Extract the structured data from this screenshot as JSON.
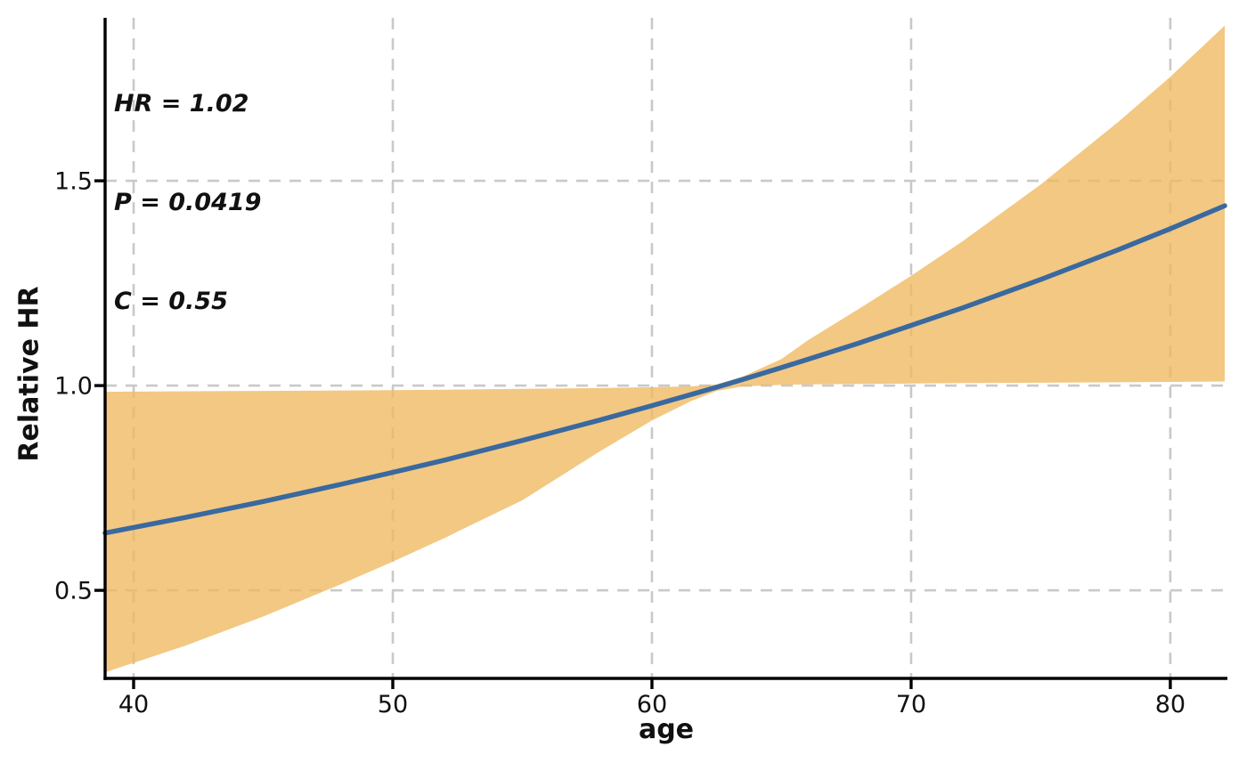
{
  "chart_data": {
    "type": "line",
    "title": "",
    "xlabel": "age",
    "ylabel": "Relative HR",
    "x_ticks": [
      40,
      50,
      60,
      70,
      80
    ],
    "y_ticks": [
      0.5,
      1.0,
      1.5
    ],
    "x_domain": [
      38.9,
      82.1
    ],
    "y_domain": [
      0.285,
      1.898
    ],
    "grid": {
      "style": "dashed",
      "color": "#c9c9c9",
      "on": true
    },
    "legend": "none",
    "annotation": {
      "lines": [
        "HR = 1.02",
        "P = 0.0419",
        "C = 0.55"
      ]
    },
    "stats": {
      "HR": "1.02",
      "P": "0.0419",
      "C": "0.55"
    },
    "reference_hr": 1.0,
    "x": [
      38.9,
      42,
      45,
      48,
      50,
      52,
      55,
      58,
      60,
      61.5,
      62.5,
      63.5,
      65,
      66,
      68,
      70,
      72,
      75,
      78,
      80,
      82.1
    ],
    "series": [
      {
        "name": "relative-hr-curve",
        "type": "line",
        "color": "#39699f",
        "values": [
          0.64,
          0.678,
          0.717,
          0.759,
          0.788,
          0.818,
          0.866,
          0.916,
          0.951,
          0.978,
          0.996,
          1.015,
          1.044,
          1.064,
          1.104,
          1.147,
          1.19,
          1.259,
          1.332,
          1.383,
          1.439
        ]
      },
      {
        "name": "confidence-band-upper",
        "type": "band_upper",
        "color": "#f0b860",
        "values": [
          0.985,
          0.986,
          0.987,
          0.988,
          0.989,
          0.99,
          0.992,
          0.994,
          0.996,
          0.998,
          1.003,
          1.022,
          1.065,
          1.11,
          1.188,
          1.268,
          1.353,
          1.491,
          1.644,
          1.754,
          1.879
        ]
      },
      {
        "name": "confidence-band-lower",
        "type": "band_lower",
        "color": "#f0b860",
        "values": [
          0.3,
          0.365,
          0.436,
          0.515,
          0.57,
          0.628,
          0.72,
          0.84,
          0.915,
          0.962,
          0.987,
          0.998,
          1.002,
          1.003,
          1.004,
          1.005,
          1.006,
          1.007,
          1.008,
          1.009,
          1.01
        ]
      }
    ],
    "colors": {
      "line": "#39699f",
      "band": "#f0b860",
      "grid": "#c9c9c9",
      "axis": "#000000",
      "text": "#111111"
    }
  }
}
